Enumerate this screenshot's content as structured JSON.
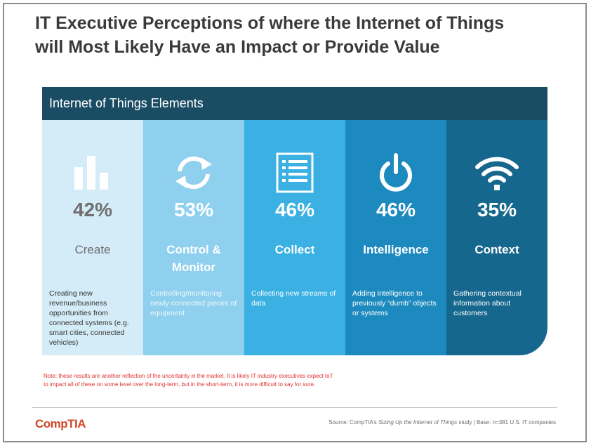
{
  "title": {
    "line1": "IT Executive Perceptions of where the Internet of Things",
    "line2": "will Most Likely Have an Impact or Provide Value"
  },
  "panel": {
    "header": "Internet of Things Elements",
    "columns": [
      {
        "icon": "bar-chart-icon",
        "percent": "42%",
        "name_line1": "Create",
        "name_line2": "",
        "description": "Creating new revenue/business opportunities from connected systems (e.g. smart cities, connected vehicles)"
      },
      {
        "icon": "refresh-icon",
        "percent": "53%",
        "name_line1": "Control &",
        "name_line2": "Monitor",
        "description": "Controlling/monitoring newly connected pieces of equipment"
      },
      {
        "icon": "list-icon",
        "percent": "46%",
        "name_line1": "Collect",
        "name_line2": "",
        "description": "Collecting new streams of data"
      },
      {
        "icon": "power-icon",
        "percent": "46%",
        "name_line1": "Intelligence",
        "name_line2": "",
        "description": "Adding intelligence to previously “dumb” objects or systems"
      },
      {
        "icon": "wifi-icon",
        "percent": "35%",
        "name_line1": "Context",
        "name_line2": "",
        "description": "Gathering contextual information about customers"
      }
    ]
  },
  "note": {
    "line1": "Note: these results are another reflection of the uncertainty in the market. It is likely IT industry executives expect IoT",
    "line2": "to impact all of these on some level over the long-term, but in the short-term, it is more difficult to say for sure."
  },
  "footer": {
    "logo": "CompTIA",
    "source_prefix": "Source: CompTIA’s ",
    "source_study": "Sizing Up the Internet of Things",
    "source_suffix": " study | Base: n=381 U.S. IT companies"
  },
  "colors": {
    "header": "#1a4d63",
    "col1": "#d4ecf7",
    "col2": "#8fd0ee",
    "col3": "#3bb0e2",
    "col4": "#1d8abf",
    "col5": "#16678d",
    "note": "#e03131",
    "logo": "#d2462a"
  }
}
